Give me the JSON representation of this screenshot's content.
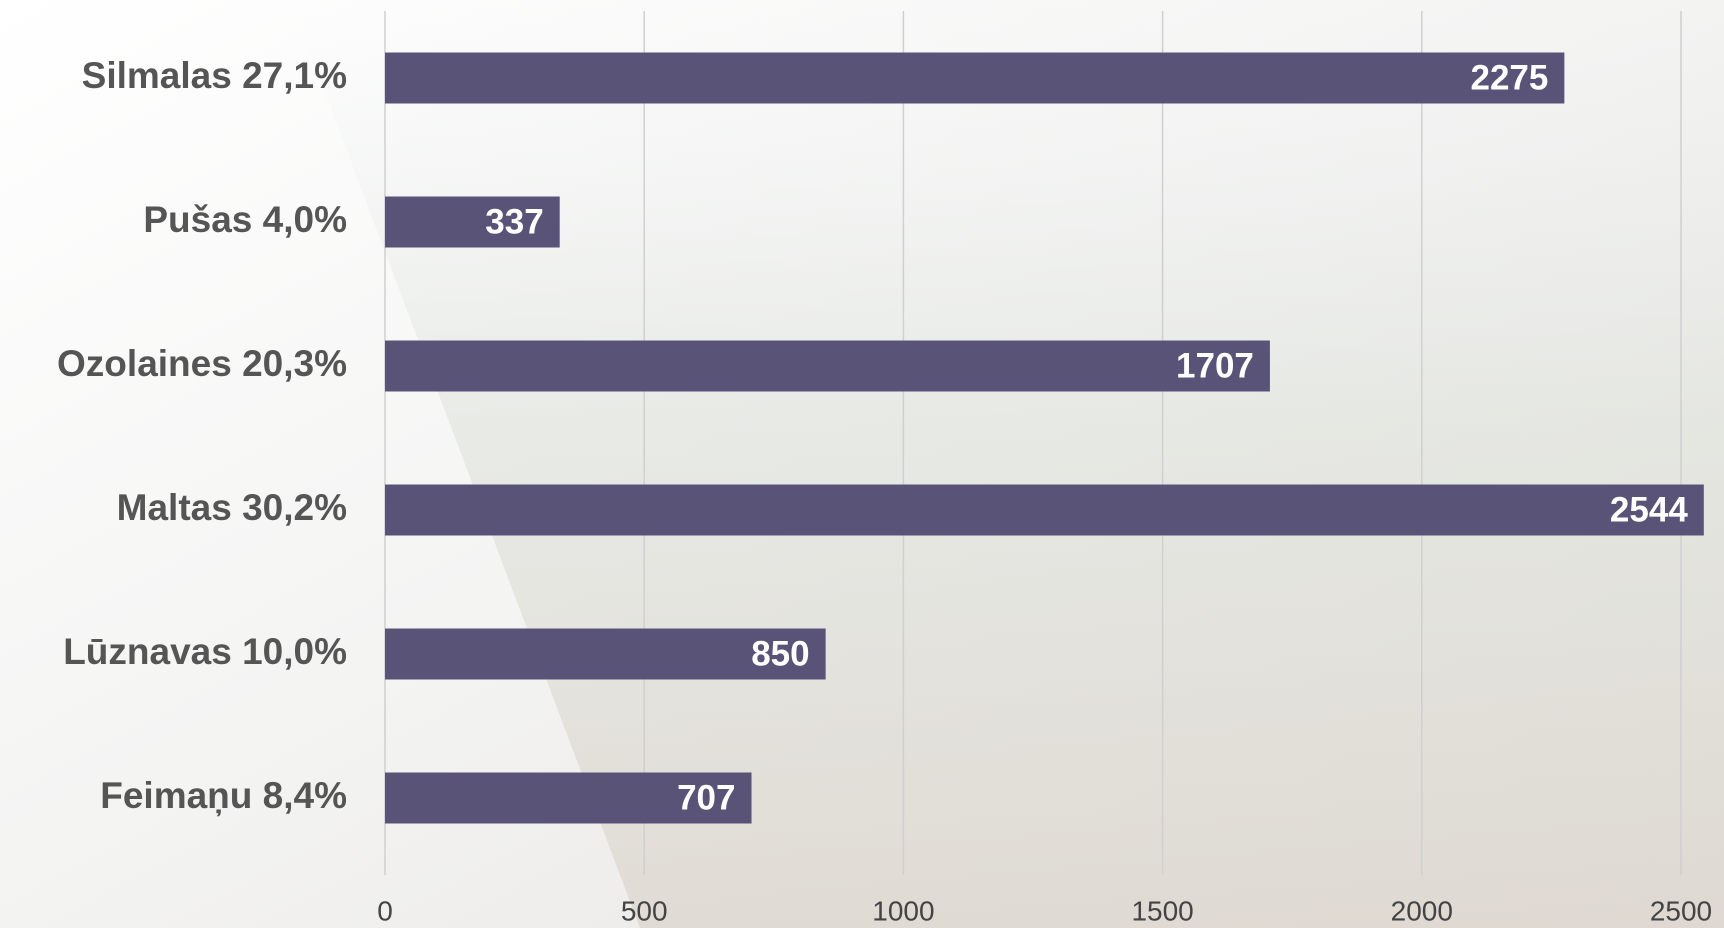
{
  "chart_data": {
    "type": "hbar",
    "categories": [
      "Silmalas 27,1%",
      "Pušas 4,0%",
      "Ozolaines 20,3%",
      "Maltas 30,2%",
      "Lūznavas 10,0%",
      "Feimaņu 8,4%"
    ],
    "values": [
      2275,
      337,
      1707,
      2544,
      850,
      707
    ],
    "color": "#5a5378",
    "xlim": [
      0,
      2500
    ],
    "xticks": [
      0,
      500,
      1000,
      1500,
      2000,
      2500
    ],
    "grid": true
  }
}
